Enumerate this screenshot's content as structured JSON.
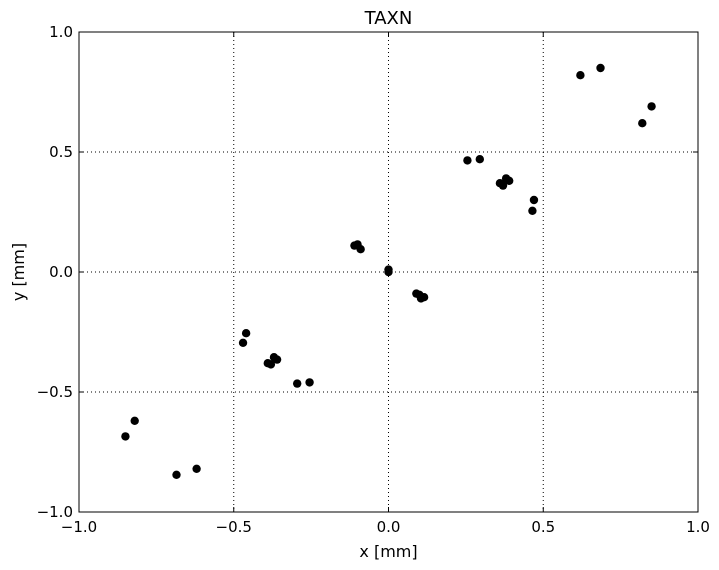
{
  "chart_data": {
    "type": "scatter",
    "title": "TAXN",
    "xlabel": "x [mm]",
    "ylabel": "y [mm]",
    "xlim": [
      -1.0,
      1.0
    ],
    "ylim": [
      -1.0,
      1.0
    ],
    "grid": true,
    "marker_color": "#000000",
    "xticks": [
      -1.0,
      -0.5,
      0.0,
      0.5,
      1.0
    ],
    "yticks": [
      -1.0,
      -0.5,
      0.0,
      0.5,
      1.0
    ],
    "xtick_labels": [
      "−1.0",
      "−0.5",
      "0.0",
      "0.5",
      "1.0"
    ],
    "ytick_labels": [
      "−1.0",
      "−0.5",
      "0.0",
      "0.5",
      "1.0"
    ],
    "points": [
      {
        "x": 0.62,
        "y": 0.82
      },
      {
        "x": 0.685,
        "y": 0.85
      },
      {
        "x": 0.82,
        "y": 0.62
      },
      {
        "x": 0.85,
        "y": 0.69
      },
      {
        "x": 0.255,
        "y": 0.465
      },
      {
        "x": 0.295,
        "y": 0.47
      },
      {
        "x": 0.36,
        "y": 0.37
      },
      {
        "x": 0.37,
        "y": 0.36
      },
      {
        "x": 0.38,
        "y": 0.39
      },
      {
        "x": 0.39,
        "y": 0.38
      },
      {
        "x": 0.465,
        "y": 0.255
      },
      {
        "x": 0.47,
        "y": 0.3
      },
      {
        "x": -0.11,
        "y": 0.11
      },
      {
        "x": -0.1,
        "y": 0.115
      },
      {
        "x": -0.09,
        "y": 0.095
      },
      {
        "x": 0.0,
        "y": 0.0
      },
      {
        "x": 0.0,
        "y": 0.01
      },
      {
        "x": 0.09,
        "y": -0.09
      },
      {
        "x": 0.1,
        "y": -0.095
      },
      {
        "x": 0.105,
        "y": -0.11
      },
      {
        "x": 0.115,
        "y": -0.105
      },
      {
        "x": -0.47,
        "y": -0.295
      },
      {
        "x": -0.46,
        "y": -0.255
      },
      {
        "x": -0.39,
        "y": -0.38
      },
      {
        "x": -0.38,
        "y": -0.385
      },
      {
        "x": -0.37,
        "y": -0.355
      },
      {
        "x": -0.36,
        "y": -0.365
      },
      {
        "x": -0.295,
        "y": -0.465
      },
      {
        "x": -0.255,
        "y": -0.46
      },
      {
        "x": -0.85,
        "y": -0.685
      },
      {
        "x": -0.82,
        "y": -0.62
      },
      {
        "x": -0.685,
        "y": -0.845
      },
      {
        "x": -0.62,
        "y": -0.82
      }
    ]
  }
}
